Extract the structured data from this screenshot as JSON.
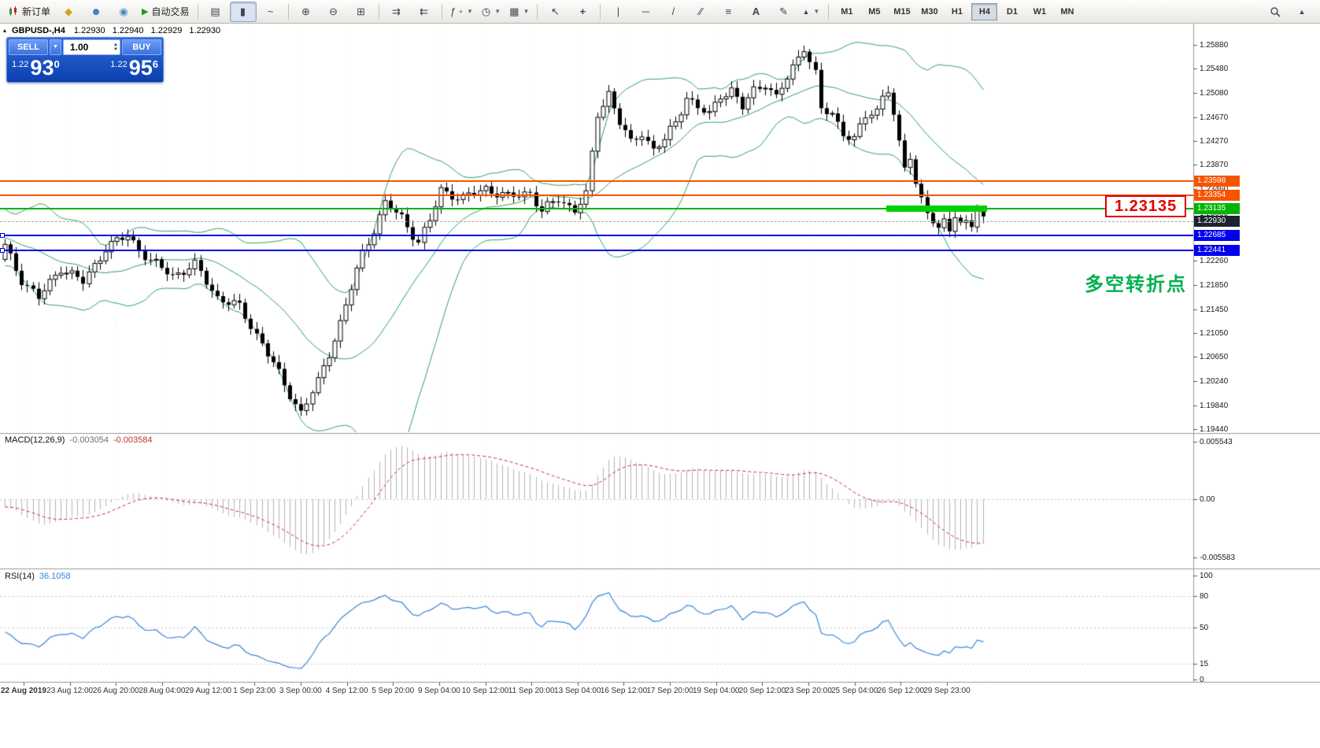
{
  "toolbar": {
    "new_order": "新订单",
    "autotrading": "自动交易",
    "timeframes": [
      "M1",
      "M5",
      "M15",
      "M30",
      "H1",
      "H4",
      "D1",
      "W1",
      "MN"
    ],
    "active_timeframe": "H4"
  },
  "chart_header": {
    "symbol": "GBPUSD-,H4",
    "open": "1.22930",
    "high": "1.22940",
    "low": "1.22929",
    "close": "1.22930"
  },
  "trade_panel": {
    "sell_label": "SELL",
    "buy_label": "BUY",
    "volume": "1.00",
    "sell_price": {
      "prefix": "1.22",
      "big": "93",
      "sup": "0"
    },
    "buy_price": {
      "prefix": "1.22",
      "big": "95",
      "sup": "6"
    }
  },
  "indicator_labels": {
    "macd_name": "MACD(12,26,9)",
    "macd_v1": "-0.003054",
    "macd_v2": "-0.003584",
    "rsi_name": "RSI(14)",
    "rsi_v": "36.1058"
  },
  "annotations": {
    "price_box": "1.23135",
    "cn_note": "多空转折点"
  },
  "levels": [
    {
      "value": "1.23598",
      "color": "#f75400",
      "type": "resistance"
    },
    {
      "value": "1.23354",
      "color": "#f75400",
      "type": "resistance"
    },
    {
      "value": "1.23135",
      "color": "#00b400",
      "type": "pivot"
    },
    {
      "value": "1.22930",
      "color": "#1c2230",
      "type": "bid"
    },
    {
      "value": "1.22685",
      "color": "#0000ee",
      "type": "support"
    },
    {
      "value": "1.22441",
      "color": "#0000ee",
      "type": "support"
    }
  ],
  "price_axis": [
    "1.25880",
    "1.25480",
    "1.25080",
    "1.24670",
    "1.24270",
    "1.23870",
    "1.23460",
    "1.23060",
    "1.22660",
    "1.22260",
    "1.21850",
    "1.21450",
    "1.21050",
    "1.20650",
    "1.20240",
    "1.19840",
    "1.19440"
  ],
  "macd_axis": [
    "0.005543",
    "0.00",
    "-0.005583"
  ],
  "rsi_axis": [
    "100",
    "80",
    "50",
    "15",
    "0"
  ],
  "time_axis": [
    "22 Aug 2019",
    "23 Aug 12:00",
    "26 Aug 20:00",
    "28 Aug 04:00",
    "29 Aug 12:00",
    "1 Sep 23:00",
    "3 Sep 00:00",
    "4 Sep 12:00",
    "5 Sep 20:00",
    "9 Sep 04:00",
    "10 Sep 12:00",
    "11 Sep 20:00",
    "13 Sep 04:00",
    "16 Sep 12:00",
    "17 Sep 20:00",
    "19 Sep 04:00",
    "20 Sep 12:00",
    "23 Sep 20:00",
    "25 Sep 04:00",
    "26 Sep 12:00",
    "29 Sep 23:00"
  ],
  "chart_data": {
    "type": "candlestick",
    "symbol": "GBPUSD",
    "timeframe": "H4",
    "bars": 176,
    "price_range": [
      1.1944,
      1.2588
    ],
    "price_path": [
      [
        0,
        1.225
      ],
      [
        3,
        1.2195
      ],
      [
        6,
        1.2163
      ],
      [
        10,
        1.2215
      ],
      [
        14,
        1.219
      ],
      [
        18,
        1.2248
      ],
      [
        22,
        1.2268
      ],
      [
        26,
        1.2225
      ],
      [
        30,
        1.2202
      ],
      [
        34,
        1.2218
      ],
      [
        38,
        1.2165
      ],
      [
        42,
        1.2148
      ],
      [
        46,
        1.2088
      ],
      [
        50,
        1.2018
      ],
      [
        53,
        1.1972
      ],
      [
        56,
        1.2022
      ],
      [
        60,
        1.2122
      ],
      [
        64,
        1.2238
      ],
      [
        68,
        1.2322
      ],
      [
        71,
        1.2298
      ],
      [
        74,
        1.2258
      ],
      [
        76,
        1.2292
      ],
      [
        78,
        1.2345
      ],
      [
        82,
        1.233
      ],
      [
        86,
        1.2348
      ],
      [
        90,
        1.2332
      ],
      [
        94,
        1.2342
      ],
      [
        96,
        1.2308
      ],
      [
        99,
        1.233
      ],
      [
        102,
        1.2312
      ],
      [
        104,
        1.2335
      ],
      [
        106,
        1.2472
      ],
      [
        108,
        1.2508
      ],
      [
        110,
        1.2458
      ],
      [
        112,
        1.2422
      ],
      [
        114,
        1.2442
      ],
      [
        116,
        1.2412
      ],
      [
        118,
        1.2428
      ],
      [
        120,
        1.2458
      ],
      [
        122,
        1.2502
      ],
      [
        124,
        1.2482
      ],
      [
        126,
        1.247
      ],
      [
        128,
        1.2505
      ],
      [
        130,
        1.2512
      ],
      [
        132,
        1.2482
      ],
      [
        134,
        1.2512
      ],
      [
        136,
        1.2525
      ],
      [
        138,
        1.2498
      ],
      [
        140,
        1.2532
      ],
      [
        143,
        1.2586
      ],
      [
        145,
        1.2538
      ],
      [
        146,
        1.2478
      ],
      [
        148,
        1.2472
      ],
      [
        150,
        1.2442
      ],
      [
        152,
        1.2428
      ],
      [
        154,
        1.2468
      ],
      [
        156,
        1.2478
      ],
      [
        157,
        1.2505
      ],
      [
        158,
        1.2515
      ],
      [
        159,
        1.2468
      ],
      [
        160,
        1.2418
      ],
      [
        161,
        1.2382
      ],
      [
        162,
        1.2402
      ],
      [
        163,
        1.2355
      ],
      [
        164,
        1.2332
      ],
      [
        165,
        1.2312
      ],
      [
        166,
        1.229
      ],
      [
        167,
        1.2272
      ],
      [
        168,
        1.2292
      ],
      [
        169,
        1.2282
      ],
      [
        170,
        1.2302
      ],
      [
        171,
        1.2288
      ],
      [
        172,
        1.2296
      ],
      [
        173,
        1.2286
      ],
      [
        174,
        1.2304
      ],
      [
        175,
        1.2293
      ]
    ],
    "overlays": {
      "bollinger": {
        "period": 20,
        "deviation": 2,
        "color": "#2fa35c"
      }
    },
    "indicators": [
      {
        "name": "MACD",
        "params": [
          12,
          26,
          9
        ],
        "current_values": [
          -0.003054,
          -0.003584
        ],
        "range": [
          -0.005583,
          0.005543
        ]
      },
      {
        "name": "RSI",
        "params": [
          14
        ],
        "current_value": 36.1058,
        "range": [
          0,
          100
        ],
        "levels": [
          80,
          50,
          15
        ]
      }
    ],
    "key_levels": [
      1.23598,
      1.23354,
      1.23135,
      1.2293,
      1.22685,
      1.22441
    ],
    "current_bid": 1.2293,
    "highlight_segment": {
      "price": 1.23135,
      "from_bar": 158,
      "to_bar": 176
    }
  }
}
